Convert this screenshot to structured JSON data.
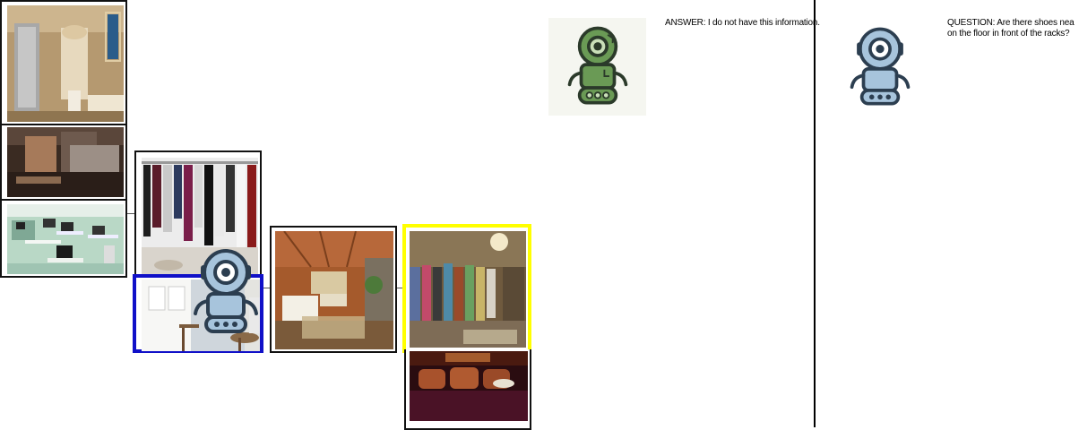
{
  "dialog": {
    "answer_text": "ANSWER: I do not have this information.",
    "question_line1": "QUESTION: Are there shoes nea",
    "question_line2": "on the floor in front of the racks?"
  },
  "agents": {
    "answerer": {
      "icon": "green-robot-icon",
      "color": "#6a9a55"
    },
    "questioner": {
      "icon": "blue-robot-icon",
      "color": "#a7c4dc"
    }
  },
  "highlights": {
    "active_view_color": "#1010c8",
    "current_view_color": "#ffff00"
  },
  "views": [
    {
      "scene": "bathroom"
    },
    {
      "scene": "dark-room"
    },
    {
      "scene": "computer-lab"
    },
    {
      "scene": "closet-clothes"
    },
    {
      "scene": "closet-doors"
    },
    {
      "scene": "living-room"
    },
    {
      "scene": "walk-in-closet"
    },
    {
      "scene": "home-theater"
    }
  ]
}
